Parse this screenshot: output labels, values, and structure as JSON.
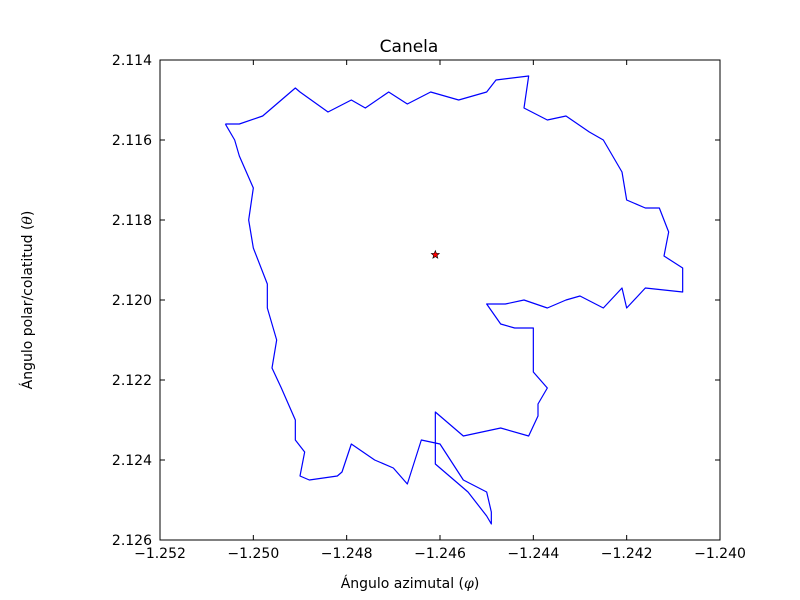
{
  "chart_data": {
    "type": "line",
    "title": "Canela",
    "xlabel_prefix": "Ángulo azimutal (",
    "xlabel_symbol": "φ",
    "xlabel_suffix": ")",
    "ylabel_prefix": "Ángulo polar/colatitud (",
    "ylabel_symbol": "θ",
    "ylabel_suffix": ")",
    "xlim": [
      -1.252,
      -1.24
    ],
    "ylim": [
      2.126,
      2.114
    ],
    "y_inverted": true,
    "grid": false,
    "xticks": [
      -1.252,
      -1.25,
      -1.248,
      -1.246,
      -1.244,
      -1.242,
      -1.24
    ],
    "xtick_labels": [
      "−1.252",
      "−1.250",
      "−1.248",
      "−1.246",
      "−1.244",
      "−1.242",
      "−1.240"
    ],
    "yticks": [
      2.114,
      2.116,
      2.118,
      2.12,
      2.122,
      2.124,
      2.126
    ],
    "ytick_labels": [
      "2.114",
      "2.116",
      "2.118",
      "2.120",
      "2.122",
      "2.124",
      "2.126"
    ],
    "series": [
      {
        "color": "#0000ff",
        "x": [
          -1.2506,
          -1.2503,
          -1.2498,
          -1.2494,
          -1.2491,
          -1.249,
          -1.2484,
          -1.2479,
          -1.2476,
          -1.2471,
          -1.2467,
          -1.2462,
          -1.2456,
          -1.245,
          -1.2448,
          -1.2441,
          -1.2442,
          -1.2437,
          -1.2433,
          -1.2428,
          -1.2425,
          -1.2421,
          -1.242,
          -1.2416,
          -1.2413,
          -1.2411,
          -1.2412,
          -1.2408,
          -1.2408,
          -1.2416,
          -1.242,
          -1.2421,
          -1.2425,
          -1.243,
          -1.2433,
          -1.2437,
          -1.2442,
          -1.2446,
          -1.245,
          -1.2447,
          -1.2444,
          -1.244,
          -1.244,
          -1.2437,
          -1.2439,
          -1.2439,
          -1.2441,
          -1.2447,
          -1.2455,
          -1.2461,
          -1.2461,
          -1.2454,
          -1.245,
          -1.2449,
          -1.2449,
          -1.245,
          -1.2455,
          -1.246,
          -1.2464,
          -1.2467,
          -1.247,
          -1.2474,
          -1.2479,
          -1.2481,
          -1.2482,
          -1.2488,
          -1.249,
          -1.2489,
          -1.2491,
          -1.2491,
          -1.2494,
          -1.2496,
          -1.2495,
          -1.2497,
          -1.2497,
          -1.25,
          -1.2501,
          -1.25,
          -1.2503,
          -1.2504,
          -1.2506
        ],
        "y": [
          2.1156,
          2.1156,
          2.1154,
          2.115,
          2.1147,
          2.1148,
          2.1153,
          2.115,
          2.1152,
          2.1148,
          2.1151,
          2.1148,
          2.115,
          2.1148,
          2.1145,
          2.1144,
          2.1152,
          2.1155,
          2.1154,
          2.1158,
          2.116,
          2.1168,
          2.1175,
          2.1177,
          2.1177,
          2.1183,
          2.1189,
          2.1192,
          2.1198,
          2.1197,
          2.1202,
          2.1197,
          2.1202,
          2.1199,
          2.12,
          2.1202,
          2.12,
          2.1201,
          2.1201,
          2.1206,
          2.1207,
          2.1207,
          2.1218,
          2.1222,
          2.1226,
          2.1229,
          2.1234,
          2.1232,
          2.1234,
          2.1228,
          2.1241,
          2.1248,
          2.1254,
          2.1256,
          2.1253,
          2.1248,
          2.1245,
          2.1236,
          2.1235,
          2.1246,
          2.1242,
          2.124,
          2.1236,
          2.1243,
          2.1244,
          2.1245,
          2.1244,
          2.1238,
          2.1235,
          2.123,
          2.1222,
          2.1217,
          2.121,
          2.1202,
          2.1196,
          2.1187,
          2.118,
          2.1172,
          2.1164,
          2.116,
          2.1156
        ]
      }
    ],
    "marker": {
      "x": -1.2461,
      "y": 2.11887,
      "symbol": "star",
      "color": "#ff0000"
    }
  }
}
